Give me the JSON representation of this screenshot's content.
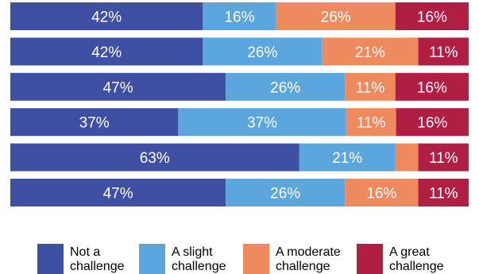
{
  "chart_data": {
    "type": "bar",
    "orientation": "horizontal",
    "stacked": true,
    "percent_stacked": true,
    "categories": [
      "",
      "",
      "",
      "",
      "",
      ""
    ],
    "series": [
      {
        "name": "Not a challenge",
        "color": "#3F4FA3",
        "values": [
          42,
          42,
          47,
          37,
          63,
          47
        ]
      },
      {
        "name": "A slight challenge",
        "color": "#5BA6DC",
        "values": [
          16,
          26,
          26,
          37,
          21,
          26
        ]
      },
      {
        "name": "A moderate challenge",
        "color": "#EE8A5D",
        "values": [
          26,
          21,
          11,
          11,
          5,
          16
        ]
      },
      {
        "name": "A great challenge",
        "color": "#B01E44",
        "values": [
          16,
          11,
          16,
          16,
          11,
          11
        ]
      }
    ],
    "data_labels": [
      [
        "42%",
        "16%",
        "26%",
        "16%"
      ],
      [
        "42%",
        "26%",
        "21%",
        "11%"
      ],
      [
        "47%",
        "26%",
        "11%",
        "16%"
      ],
      [
        "37%",
        "37%",
        "11%",
        "16%"
      ],
      [
        "63%",
        "21%",
        "",
        "11%"
      ],
      [
        "47%",
        "26%",
        "16%",
        "11%"
      ]
    ],
    "legend": {
      "position": "bottom",
      "entries": [
        {
          "line1": "Not a",
          "line2": "challenge"
        },
        {
          "line1": "A slight",
          "line2": "challenge"
        },
        {
          "line1": "A moderate",
          "line2": "challenge"
        },
        {
          "line1": "A great",
          "line2": "challenge"
        }
      ]
    },
    "xlim": [
      0,
      100
    ],
    "grid": false
  }
}
